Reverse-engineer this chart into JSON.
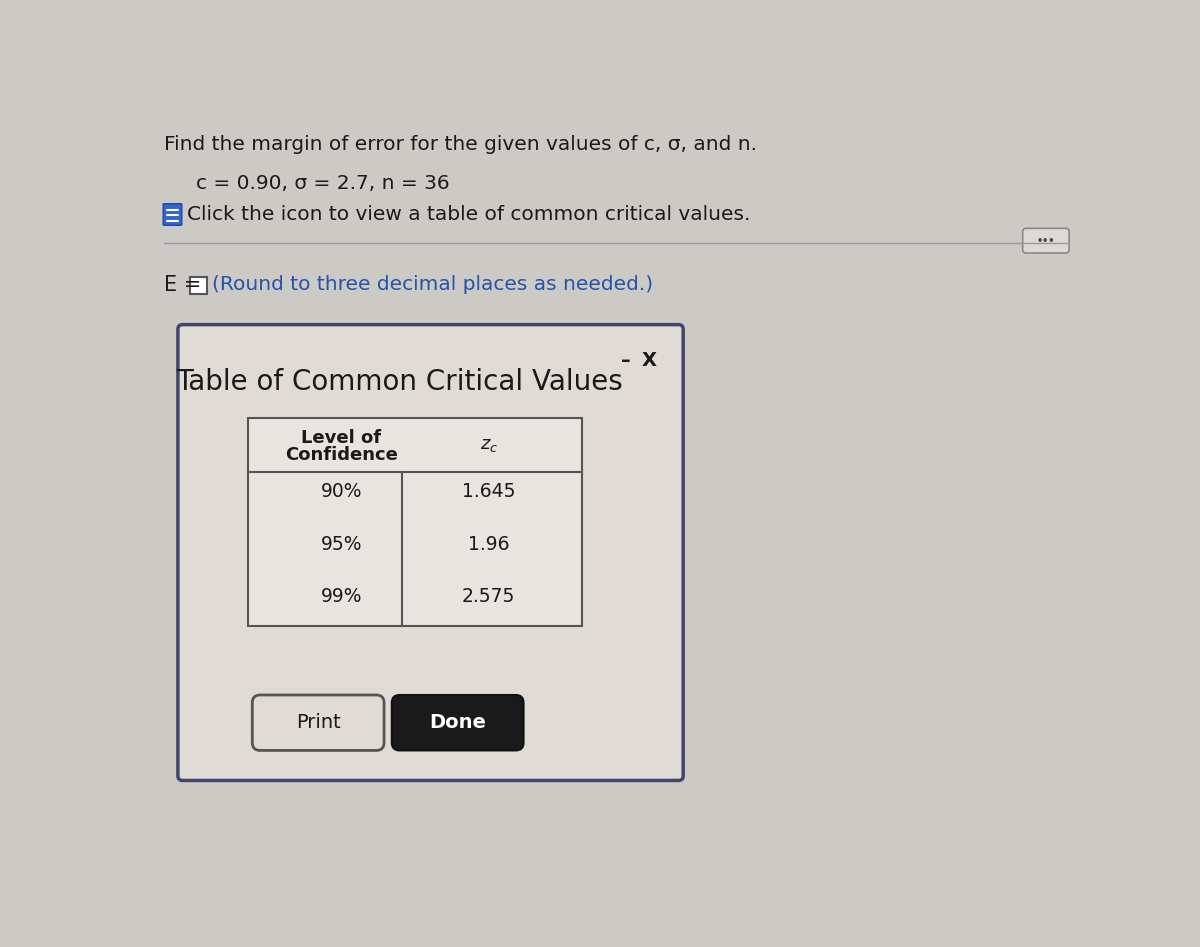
{
  "title_text": "Find the margin of error for the given values of c, σ, and n.",
  "params_text": "c = 0.90, σ = 2.7, n = 36",
  "click_text": "Click the icon to view a table of common critical values.",
  "e_label": "E =",
  "round_text": "(Round to three decimal places as needed.)",
  "dialog_title": "Table of Common Critical Values",
  "col1_header_line1": "Level of",
  "col1_header_line2": "Confidence",
  "col2_header": "$z_c$",
  "table_data": [
    [
      "90%",
      "1.645"
    ],
    [
      "95%",
      "1.96"
    ],
    [
      "99%",
      "2.575"
    ]
  ],
  "print_btn": "Print",
  "done_btn": "Done",
  "bg_color": "#cdc9c5",
  "dialog_bg": "#e0dbd5",
  "table_bg": "#e8e4df",
  "border_color": "#44446a",
  "text_color": "#1a1a1a",
  "blue_text_color": "#2255aa",
  "done_btn_color": "#1a1a1a",
  "done_btn_text_color": "#ffffff",
  "icon_color": "#3366cc",
  "dots_btn_bg": "#ddd9d5",
  "dots_btn_border": "#888888"
}
